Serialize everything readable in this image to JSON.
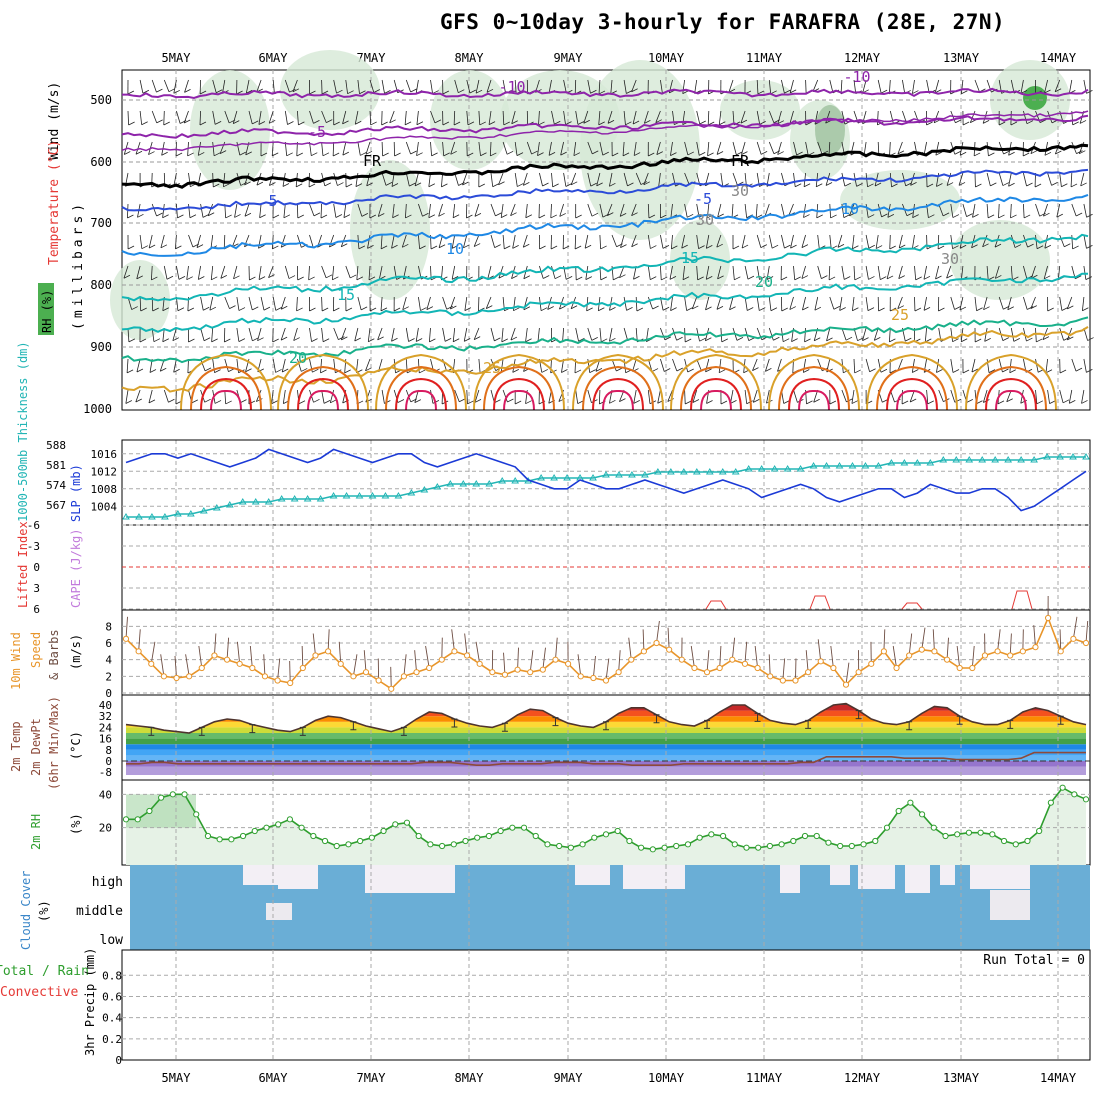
{
  "title": "GFS 0~10day 3-hourly for FARAFRA (28E, 27N)",
  "dates": [
    "5MAY",
    "6MAY",
    "7MAY",
    "8MAY",
    "9MAY",
    "10MAY",
    "11MAY",
    "12MAY",
    "13MAY",
    "14MAY"
  ],
  "colors": {
    "temp_cold": "#8e24aa",
    "temp_blue": "#2b4bd8",
    "temp_cyan": "#12b5b5",
    "temp_teal": "#19b08a",
    "temp_warm": "#d9a12a",
    "temp_hot": "#e0701a",
    "temp_red": "#e02020",
    "slp": "#1b3ad6",
    "thickness": "#22b5b5",
    "wind": "#e8952a",
    "rh": "#2e9e2e",
    "cloud": "#6aaed6"
  },
  "panels": {
    "upper_air": {
      "label_rh": "RH (%)",
      "label_temp": "Temperature (°C)",
      "label_wind": "Wind (m/s)",
      "label_units": "(millibars)",
      "yticks": [
        "500",
        "600",
        "700",
        "800",
        "900",
        "1000"
      ],
      "contour_labels": [
        "-10",
        "-10",
        "-5",
        "FR",
        "FR",
        "-5",
        "5",
        "10",
        "10",
        "15",
        "15",
        "20",
        "20",
        "25",
        "25",
        "30",
        "30",
        "30"
      ]
    },
    "slp": {
      "label_thickness": "1000-500mb Thickness (dm)",
      "label_slp": "SLP (mb)",
      "thickness_ticks": [
        "588",
        "581",
        "574",
        "567"
      ],
      "slp_ticks": [
        "1016",
        "1012",
        "1008",
        "1004"
      ]
    },
    "instability": {
      "label_li": "Lifted Index",
      "label_cape": "CAPE (J/kg)",
      "yticks": [
        "-6",
        "-3",
        "0",
        "3",
        "6"
      ]
    },
    "wind10m": {
      "label_line1": "10m Wind",
      "label_line2": "Speed",
      "label_line3": "& Barbs",
      "label_units": "(m/s)",
      "yticks": [
        "8",
        "6",
        "4",
        "2",
        "0"
      ]
    },
    "temp2m": {
      "label_line1": "2m Temp",
      "label_line2": "2m DewPt",
      "label_line3": "(6hr Min/Max)",
      "label_units": "(°C)",
      "yticks": [
        "40",
        "32",
        "24",
        "16",
        "8",
        "0",
        "-8"
      ]
    },
    "rh2m": {
      "label": "2m RH",
      "label_units": "(%)",
      "yticks": [
        "40",
        "20"
      ]
    },
    "cloud": {
      "label": "Cloud Cover",
      "label_units": "(%)",
      "levels": [
        "high",
        "middle",
        "low"
      ]
    },
    "precip": {
      "label_total": "Total / Rain",
      "label_conv": "Convective",
      "label_axis": "3hr Precip (mm)",
      "yticks": [
        "0.8",
        "0.6",
        "0.4",
        "0.2",
        "0"
      ],
      "run_total": "Run Total = 0"
    }
  },
  "chart_data": [
    {
      "type": "line",
      "title": "SLP (mb)",
      "x": "3-hourly, 5MAY-14MAY",
      "ylim": [
        1002,
        1018
      ],
      "series": [
        {
          "name": "SLP",
          "values": [
            1014,
            1015,
            1016,
            1016,
            1015,
            1016,
            1015,
            1014,
            1013,
            1014,
            1015,
            1017,
            1016,
            1015,
            1014,
            1015,
            1017,
            1016,
            1015,
            1014,
            1015,
            1016,
            1016,
            1014,
            1013,
            1014,
            1015,
            1016,
            1015,
            1014,
            1013,
            1010,
            1009,
            1008,
            1008,
            1010,
            1009,
            1008,
            1008,
            1009,
            1010,
            1009,
            1008,
            1007,
            1008,
            1009,
            1010,
            1009,
            1008,
            1006,
            1007,
            1008,
            1009,
            1008,
            1006,
            1005,
            1006,
            1007,
            1008,
            1008,
            1006,
            1007,
            1009,
            1008,
            1007,
            1007,
            1008,
            1008,
            1006,
            1003,
            1004,
            1006,
            1008,
            1010,
            1012
          ]
        }
      ]
    },
    {
      "type": "line",
      "title": "1000-500mb Thickness (dm)",
      "ylim": [
        564,
        589
      ],
      "series": [
        {
          "name": "Thickness",
          "values": [
            565,
            565,
            565,
            565,
            566,
            566,
            567,
            568,
            569,
            570,
            570,
            570,
            571,
            571,
            571,
            571,
            572,
            572,
            572,
            572,
            572,
            572,
            573,
            574,
            575,
            576,
            576,
            576,
            576,
            577,
            577,
            577,
            578,
            578,
            578,
            578,
            578,
            579,
            579,
            579,
            579,
            580,
            580,
            580,
            580,
            580,
            580,
            580,
            581,
            581,
            581,
            581,
            581,
            582,
            582,
            582,
            582,
            582,
            582,
            583,
            583,
            583,
            583,
            584,
            584,
            584,
            584,
            584,
            584,
            584,
            584,
            585,
            585,
            585,
            585
          ]
        }
      ]
    },
    {
      "type": "line",
      "title": "10m Wind Speed (m/s)",
      "ylim": [
        0,
        9
      ],
      "series": [
        {
          "name": "Wind speed",
          "values": [
            6.5,
            5,
            3.5,
            2,
            1.8,
            2,
            3,
            4.5,
            4,
            3.5,
            3,
            2,
            1.5,
            1.2,
            3,
            4.5,
            5,
            3.5,
            2,
            2.5,
            1.5,
            0.5,
            2,
            2.5,
            3,
            4,
            5,
            4.5,
            3.5,
            2.5,
            2.2,
            2.8,
            2.5,
            2.8,
            4,
            3.5,
            2,
            1.8,
            1.5,
            2.5,
            4,
            5,
            6,
            5.2,
            4,
            3,
            2.5,
            3,
            4,
            3.5,
            3,
            2,
            1.5,
            1.5,
            2.5,
            3.8,
            3,
            1,
            2.5,
            3.5,
            5,
            3,
            4.5,
            5.2,
            5,
            4,
            3,
            3,
            4.5,
            5,
            4.5,
            5,
            5.5,
            9,
            5,
            6.5,
            6
          ]
        }
      ]
    },
    {
      "type": "line",
      "title": "2m Temp (°C)",
      "ylim": [
        -8,
        44
      ],
      "series": [
        {
          "name": "Temp",
          "values": [
            26,
            25,
            24,
            22,
            21,
            20,
            24,
            28,
            30,
            29,
            26,
            24,
            22,
            21,
            24,
            29,
            32,
            31,
            28,
            25,
            23,
            21,
            24,
            30,
            35,
            34,
            30,
            27,
            25,
            24,
            27,
            33,
            37,
            36,
            31,
            27,
            25,
            24,
            28,
            34,
            38,
            38,
            33,
            28,
            26,
            25,
            29,
            35,
            40,
            40,
            34,
            29,
            27,
            26,
            29,
            35,
            40,
            41,
            36,
            30,
            27,
            26,
            28,
            34,
            39,
            38,
            32,
            28,
            26,
            26,
            29,
            35,
            38,
            36,
            32,
            28,
            26
          ]
        },
        {
          "name": "DewPt",
          "values": [
            -2,
            -2,
            -1,
            -1,
            -2,
            -2,
            -2,
            -2,
            -2,
            -2,
            -2,
            -2,
            -2,
            -2,
            -2,
            -2,
            -2,
            -2,
            -2,
            -2,
            -2,
            -2,
            -2,
            -1,
            -1,
            -1,
            -2,
            -3,
            -3,
            -2,
            -2,
            -2,
            -2,
            -1,
            -1,
            -1,
            -2,
            -2,
            -2,
            -3,
            -3,
            -3,
            -3,
            -2,
            -2,
            -2,
            -2,
            -2,
            -2,
            -2,
            -2,
            -2,
            -1,
            -1,
            3,
            3,
            3,
            3,
            3,
            3,
            2,
            2,
            2,
            2,
            1,
            1,
            1,
            1,
            1,
            2,
            6,
            6,
            6,
            6,
            6
          ]
        }
      ]
    },
    {
      "type": "area",
      "title": "2m RH (%)",
      "ylim": [
        0,
        45
      ],
      "series": [
        {
          "name": "RH",
          "values": [
            25,
            25,
            30,
            38,
            40,
            40,
            28,
            15,
            13,
            13,
            15,
            18,
            20,
            22,
            25,
            20,
            15,
            12,
            9,
            10,
            12,
            14,
            18,
            22,
            23,
            15,
            10,
            9,
            10,
            12,
            14,
            15,
            18,
            20,
            20,
            15,
            10,
            9,
            8,
            10,
            14,
            16,
            18,
            12,
            8,
            7,
            8,
            9,
            10,
            14,
            16,
            15,
            10,
            8,
            8,
            9,
            10,
            12,
            15,
            15,
            11,
            9,
            9,
            10,
            12,
            20,
            30,
            35,
            28,
            20,
            15,
            16,
            17,
            17,
            16,
            12,
            10,
            12,
            18,
            35,
            44,
            40,
            37
          ]
        }
      ]
    },
    {
      "type": "bar",
      "title": "3hr Precip (mm)",
      "ylim": [
        0,
        1
      ],
      "series": [
        {
          "name": "Total / Rain",
          "values": [
            0
          ]
        }
      ]
    }
  ]
}
